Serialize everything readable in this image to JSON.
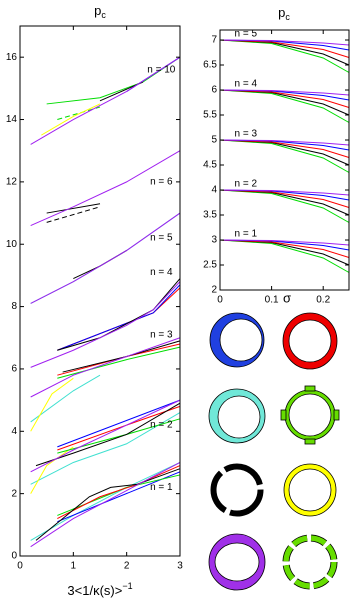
{
  "chart_data": [
    {
      "type": "line",
      "title": "p",
      "title_subscript": "c",
      "xlabel": "3<1/κ(s)>",
      "xlabel_superscript": "−1",
      "xlim": [
        0,
        3
      ],
      "ylim": [
        0,
        17
      ],
      "xticks": [
        0,
        1,
        2,
        3
      ],
      "yticks": [
        0,
        2,
        4,
        6,
        8,
        10,
        12,
        14,
        16
      ],
      "annotations": [
        {
          "text": "n = 1",
          "x": 2.65,
          "y": 2.2
        },
        {
          "text": "n = 2",
          "x": 2.65,
          "y": 4.2
        },
        {
          "text": "n = 3",
          "x": 2.65,
          "y": 7.1
        },
        {
          "text": "n = 4",
          "x": 2.65,
          "y": 9.1
        },
        {
          "text": "n = 5",
          "x": 2.65,
          "y": 10.2
        },
        {
          "text": "n = 6",
          "x": 2.65,
          "y": 12.0
        },
        {
          "text": "n = 10",
          "x": 2.65,
          "y": 15.6
        }
      ],
      "series": [
        {
          "color": "#40e0d0",
          "x": [
            0.2,
            1,
            2,
            3
          ],
          "values": [
            0.5,
            1.3,
            2.2,
            3.0
          ]
        },
        {
          "color": "#0000ff",
          "x": [
            0.7,
            3
          ],
          "values": [
            1.1,
            2.7
          ]
        },
        {
          "color": "#00dd00",
          "x": [
            0.7,
            2,
            3
          ],
          "values": [
            1.3,
            2.2,
            2.6
          ]
        },
        {
          "color": "#ff0000",
          "x": [
            0.7,
            1.5,
            2.2,
            3
          ],
          "values": [
            1.2,
            1.9,
            2.3,
            2.9
          ]
        },
        {
          "color": "#000000",
          "x": [
            0.3,
            0.8,
            1.3,
            1.7,
            2.2,
            3
          ],
          "values": [
            0.5,
            1.2,
            1.9,
            2.2,
            2.3,
            2.8
          ]
        },
        {
          "color": "#a020f0",
          "x": [
            0.2,
            1,
            2,
            3
          ],
          "values": [
            0.3,
            1.2,
            2.1,
            3.0
          ]
        },
        {
          "color": "#40e0d0",
          "x": [
            0.2,
            1,
            2,
            3
          ],
          "values": [
            2.3,
            3.0,
            3.6,
            4.6
          ]
        },
        {
          "color": "#ffff00",
          "x": [
            0.2,
            0.5,
            1
          ],
          "values": [
            2.0,
            2.9,
            3.5
          ]
        },
        {
          "color": "#0000ff",
          "x": [
            0.7,
            3
          ],
          "values": [
            3.5,
            5.0
          ]
        },
        {
          "color": "#ff0000",
          "x": [
            0.7,
            2,
            3
          ],
          "values": [
            3.4,
            4.2,
            4.8
          ]
        },
        {
          "color": "#00dd00",
          "x": [
            0.7,
            2,
            3
          ],
          "values": [
            3.3,
            3.9,
            4.4
          ]
        },
        {
          "color": "#000000",
          "x": [
            0.3,
            1,
            2,
            3
          ],
          "values": [
            2.9,
            3.3,
            3.9,
            4.9
          ]
        },
        {
          "color": "#a020f0",
          "x": [
            0.2,
            1,
            2,
            3
          ],
          "values": [
            2.7,
            3.4,
            4.2,
            5.0
          ]
        },
        {
          "color": "#40e0d0",
          "x": [
            0.2,
            1,
            1.5
          ],
          "values": [
            4.3,
            5.3,
            5.8
          ]
        },
        {
          "color": "#ffff00",
          "x": [
            0.2,
            0.6,
            1
          ],
          "values": [
            4.0,
            5.2,
            5.7
          ]
        },
        {
          "color": "#ff0000",
          "x": [
            0.7,
            2,
            3
          ],
          "values": [
            5.8,
            6.4,
            6.8
          ]
        },
        {
          "color": "#00dd00",
          "x": [
            0.7,
            2,
            3
          ],
          "values": [
            5.7,
            6.3,
            6.7
          ]
        },
        {
          "color": "#000000",
          "x": [
            0.8,
            2,
            3
          ],
          "values": [
            5.9,
            6.4,
            6.9
          ]
        },
        {
          "color": "#a020f0",
          "x": [
            0.2,
            1,
            2,
            3
          ],
          "values": [
            5.1,
            5.8,
            6.4,
            7.0
          ]
        },
        {
          "color": "#ff0000",
          "x": [
            0.7,
            2.5,
            3
          ],
          "values": [
            6.6,
            7.8,
            8.6
          ]
        },
        {
          "color": "#0000ff",
          "x": [
            0.7,
            2.5,
            3
          ],
          "values": [
            6.6,
            7.8,
            8.7
          ]
        },
        {
          "color": "#000000",
          "x": [
            0.7,
            1.5,
            2.5,
            3
          ],
          "values": [
            6.6,
            7.0,
            7.9,
            8.9
          ]
        },
        {
          "color": "#a020f0",
          "x": [
            0.2,
            1,
            2,
            2.5,
            3
          ],
          "values": [
            6.05,
            6.6,
            7.4,
            7.9,
            8.8
          ]
        },
        {
          "color": "#40e0d0",
          "x": [
            0.2,
            1,
            2,
            3
          ],
          "values": [
            8.1,
            8.8,
            9.8,
            11.0
          ]
        },
        {
          "color": "#000000",
          "x": [
            1,
            1.5,
            2
          ],
          "values": [
            8.9,
            9.3,
            9.8
          ]
        },
        {
          "color": "#a020f0",
          "x": [
            0.2,
            1,
            2,
            3
          ],
          "values": [
            8.1,
            8.8,
            9.8,
            11.0
          ]
        },
        {
          "color": "#000000",
          "x": [
            0.5,
            1.5
          ],
          "values": [
            11.0,
            11.3
          ]
        },
        {
          "color": "#000000",
          "x": [
            0.5,
            1.5
          ],
          "values": [
            10.7,
            11.2
          ],
          "dash": true
        },
        {
          "color": "#a020f0",
          "x": [
            0.2,
            1,
            2,
            3
          ],
          "values": [
            10.6,
            11.2,
            12.0,
            13.0
          ]
        },
        {
          "color": "#00dd00",
          "x": [
            0.5,
            1.5,
            2.3,
            3
          ],
          "values": [
            14.5,
            14.7,
            15.2,
            16.0
          ]
        },
        {
          "color": "#00dd00",
          "x": [
            0.7,
            1.5
          ],
          "values": [
            14.0,
            14.4
          ],
          "dash": true
        },
        {
          "color": "#ffff00",
          "x": [
            0.4,
            1.0,
            1.5
          ],
          "values": [
            13.5,
            14.1,
            14.5
          ]
        },
        {
          "color": "#0000ff",
          "x": [
            2,
            3
          ],
          "values": [
            14.9,
            16.0
          ]
        },
        {
          "color": "#000000",
          "x": [
            1.5,
            2.3
          ],
          "values": [
            14.6,
            15.2
          ]
        },
        {
          "color": "#a020f0",
          "x": [
            0.2,
            1,
            2,
            3
          ],
          "values": [
            13.2,
            14.0,
            14.9,
            16.0
          ]
        }
      ]
    },
    {
      "type": "line",
      "title": "p",
      "title_subscript": "c",
      "xlabel": "σ",
      "xlim": [
        0,
        0.25
      ],
      "ylim": [
        2,
        7.2
      ],
      "xticks": [
        0,
        0.1,
        0.2
      ],
      "yticks": [
        2,
        2.5,
        3,
        3.5,
        4,
        4.5,
        5,
        5.5,
        6,
        6.5,
        7
      ],
      "annotations": [
        {
          "text": "n = 5",
          "x": 0.05,
          "y": 7.12
        },
        {
          "text": "n = 4",
          "x": 0.05,
          "y": 6.12
        },
        {
          "text": "n = 3",
          "x": 0.05,
          "y": 5.12
        },
        {
          "text": "n = 2",
          "x": 0.05,
          "y": 4.12
        },
        {
          "text": "n = 1",
          "x": 0.05,
          "y": 3.12
        }
      ],
      "series": [
        {
          "color": "#00dd00",
          "x": [
            0,
            0.1,
            0.2,
            0.25
          ],
          "values": [
            3,
            2.93,
            2.64,
            2.35
          ]
        },
        {
          "color": "#000000",
          "x": [
            0,
            0.1,
            0.2,
            0.25
          ],
          "values": [
            3,
            2.95,
            2.72,
            2.5
          ]
        },
        {
          "color": "#ff0000",
          "x": [
            0,
            0.1,
            0.2,
            0.25
          ],
          "values": [
            3,
            2.96,
            2.81,
            2.65
          ]
        },
        {
          "color": "#0000ff",
          "x": [
            0,
            0.1,
            0.2,
            0.25
          ],
          "values": [
            3,
            2.98,
            2.89,
            2.8
          ]
        },
        {
          "color": "#a020f0",
          "x": [
            0,
            0.1,
            0.2,
            0.25
          ],
          "values": [
            3,
            2.99,
            2.94,
            2.9
          ]
        },
        {
          "color": "#00dd00",
          "x": [
            0,
            0.1,
            0.2,
            0.25
          ],
          "values": [
            4,
            3.93,
            3.64,
            3.35
          ]
        },
        {
          "color": "#000000",
          "x": [
            0,
            0.1,
            0.2,
            0.25
          ],
          "values": [
            4,
            3.95,
            3.72,
            3.5
          ]
        },
        {
          "color": "#ff0000",
          "x": [
            0,
            0.1,
            0.2,
            0.25
          ],
          "values": [
            4,
            3.96,
            3.81,
            3.65
          ]
        },
        {
          "color": "#0000ff",
          "x": [
            0,
            0.1,
            0.2,
            0.25
          ],
          "values": [
            4,
            3.98,
            3.89,
            3.8
          ]
        },
        {
          "color": "#a020f0",
          "x": [
            0,
            0.1,
            0.2,
            0.25
          ],
          "values": [
            4,
            3.99,
            3.94,
            3.9
          ]
        },
        {
          "color": "#00dd00",
          "x": [
            0,
            0.1,
            0.2,
            0.25
          ],
          "values": [
            5,
            4.93,
            4.64,
            4.35
          ]
        },
        {
          "color": "#000000",
          "x": [
            0,
            0.1,
            0.2,
            0.25
          ],
          "values": [
            5,
            4.95,
            4.72,
            4.5
          ]
        },
        {
          "color": "#ff0000",
          "x": [
            0,
            0.1,
            0.2,
            0.25
          ],
          "values": [
            5,
            4.96,
            4.81,
            4.65
          ]
        },
        {
          "color": "#0000ff",
          "x": [
            0,
            0.1,
            0.2,
            0.25
          ],
          "values": [
            5,
            4.98,
            4.89,
            4.8
          ]
        },
        {
          "color": "#a020f0",
          "x": [
            0,
            0.1,
            0.2,
            0.25
          ],
          "values": [
            5,
            4.99,
            4.94,
            4.9
          ]
        },
        {
          "color": "#00dd00",
          "x": [
            0,
            0.1,
            0.2,
            0.25
          ],
          "values": [
            6,
            5.93,
            5.64,
            5.35
          ]
        },
        {
          "color": "#000000",
          "x": [
            0,
            0.1,
            0.2,
            0.25
          ],
          "values": [
            6,
            5.95,
            5.72,
            5.5
          ]
        },
        {
          "color": "#ff0000",
          "x": [
            0,
            0.1,
            0.2,
            0.25
          ],
          "values": [
            6,
            5.96,
            5.81,
            5.65
          ]
        },
        {
          "color": "#0000ff",
          "x": [
            0,
            0.1,
            0.2,
            0.25
          ],
          "values": [
            6,
            5.98,
            5.89,
            5.8
          ]
        },
        {
          "color": "#a020f0",
          "x": [
            0,
            0.1,
            0.2,
            0.25
          ],
          "values": [
            6,
            5.99,
            5.94,
            5.9
          ]
        },
        {
          "color": "#00dd00",
          "x": [
            0,
            0.1,
            0.2,
            0.25
          ],
          "values": [
            7,
            6.93,
            6.64,
            6.35
          ]
        },
        {
          "color": "#000000",
          "x": [
            0,
            0.1,
            0.2,
            0.25
          ],
          "values": [
            7,
            6.95,
            6.72,
            6.5
          ]
        },
        {
          "color": "#ff0000",
          "x": [
            0,
            0.1,
            0.2,
            0.25
          ],
          "values": [
            7,
            6.96,
            6.81,
            6.65
          ]
        },
        {
          "color": "#0000ff",
          "x": [
            0,
            0.1,
            0.2,
            0.25
          ],
          "values": [
            7,
            6.98,
            6.89,
            6.8
          ]
        },
        {
          "color": "#a020f0",
          "x": [
            0,
            0.1,
            0.2,
            0.25
          ],
          "values": [
            7,
            6.99,
            6.94,
            6.9
          ]
        }
      ]
    }
  ]
}
